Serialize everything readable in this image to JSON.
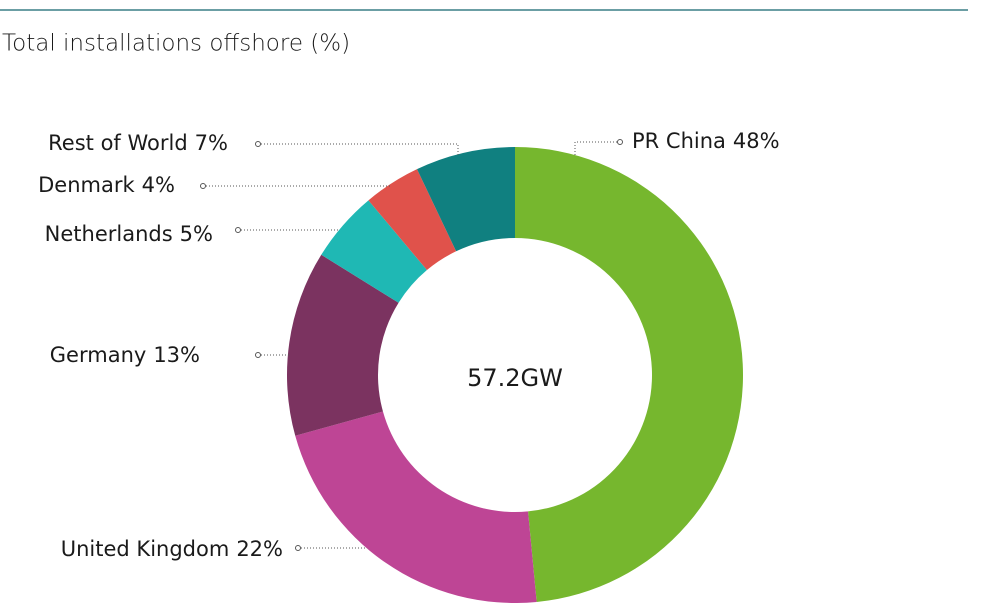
{
  "chart_data": {
    "type": "pie",
    "title": "Total installations offshore (%)",
    "center_label": "57.2GW",
    "categories": [
      "PR China",
      "United Kingdom",
      "Germany",
      "Netherlands",
      "Denmark",
      "Rest of World"
    ],
    "values": [
      48,
      22,
      13,
      5,
      4,
      7
    ],
    "value_labels": [
      "48%",
      "22%",
      "13%",
      "5%",
      "4%",
      "7%"
    ],
    "colors": [
      "#76b72e",
      "#be4595",
      "#7b3360",
      "#1fb8b4",
      "#e0524b",
      "#108080"
    ]
  }
}
